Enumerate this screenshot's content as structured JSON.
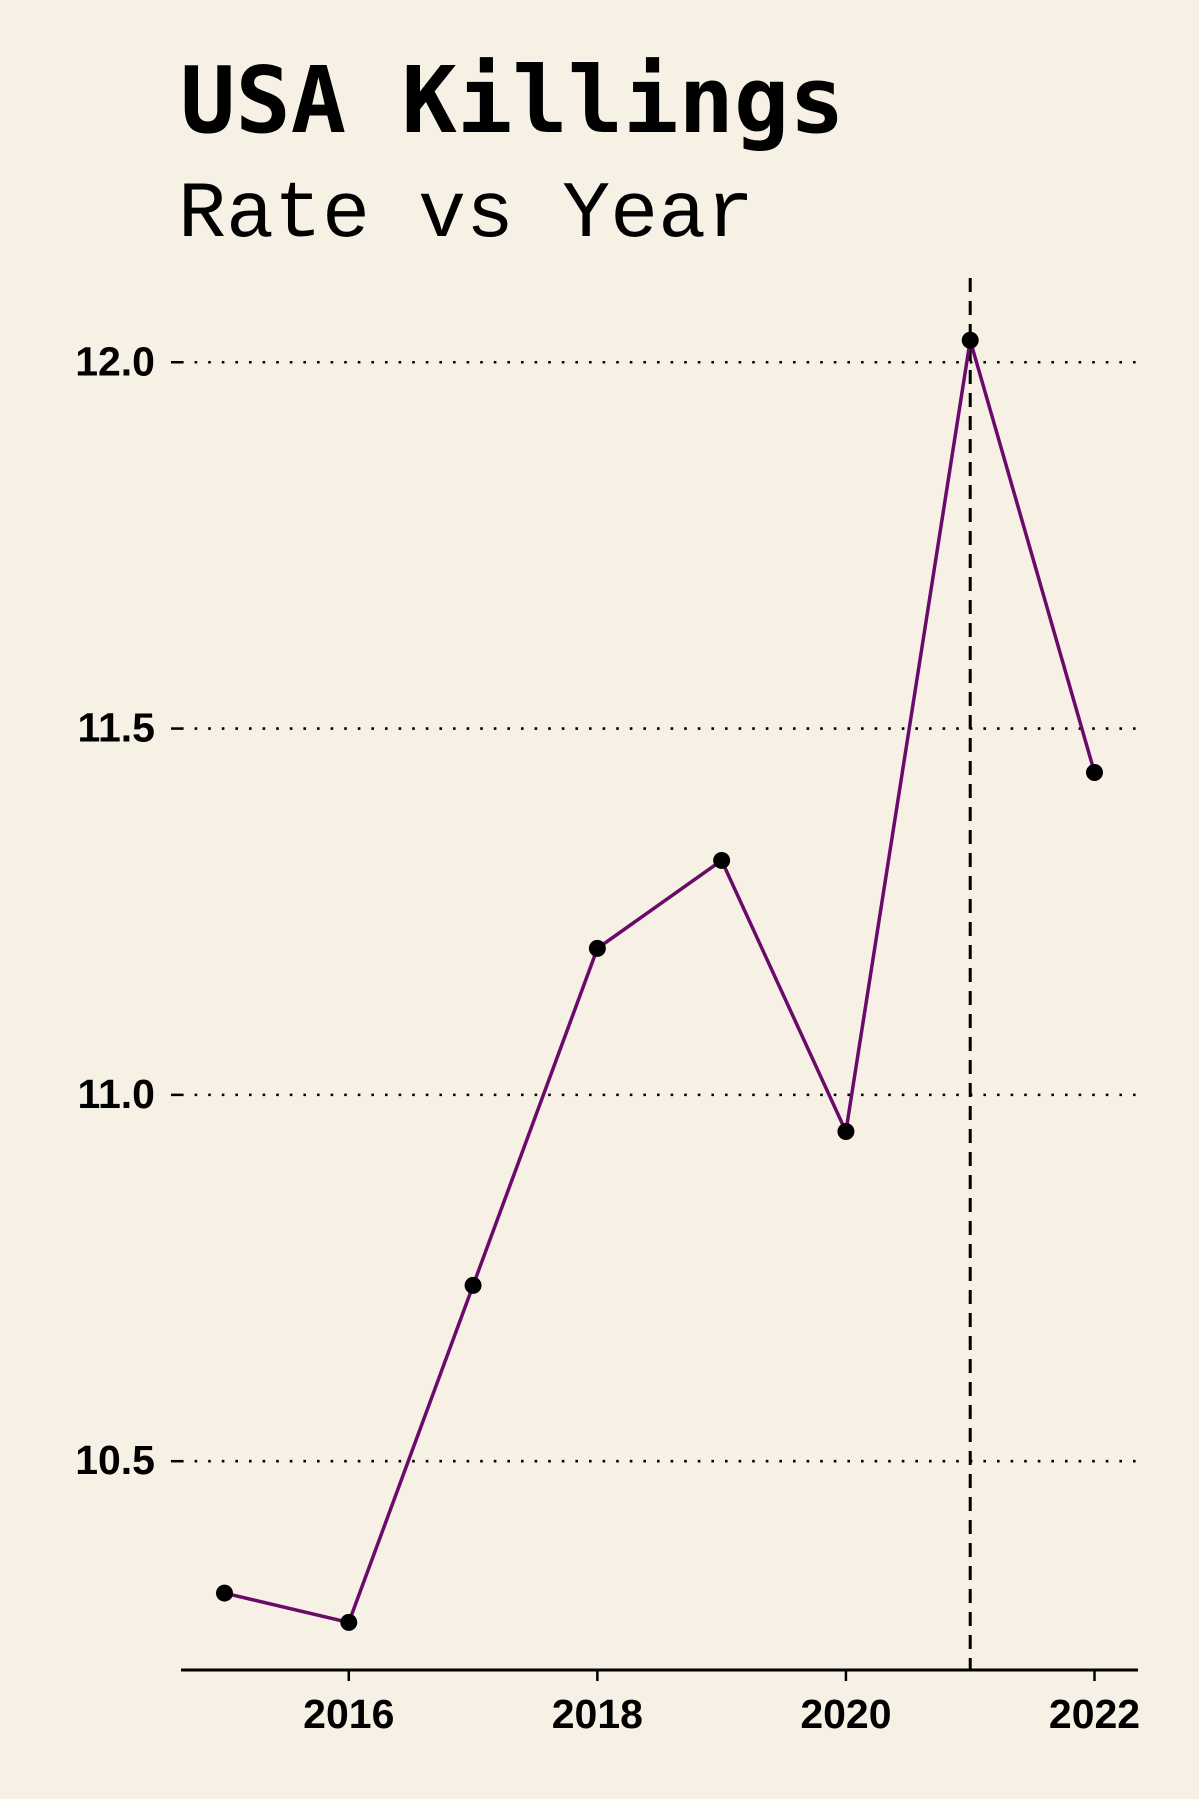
{
  "title": "USA Killings",
  "subtitle": "Rate vs Year",
  "chart_data": {
    "type": "line",
    "title": "USA Killings",
    "subtitle": "Rate vs Year",
    "xlabel": "",
    "ylabel": "",
    "x": [
      2015,
      2016,
      2017,
      2018,
      2019,
      2020,
      2021,
      2022
    ],
    "series": [
      {
        "values": [
          10.32,
          10.28,
          10.74,
          11.2,
          11.32,
          10.95,
          12.03,
          11.44
        ],
        "color": "#6a0a6a",
        "marker_color": "#000000"
      }
    ],
    "xticks": [
      2016,
      2018,
      2020,
      2022
    ],
    "xtick_labels": [
      "2016",
      "2018",
      "2020",
      "2022"
    ],
    "yticks": [
      10.5,
      11.0,
      11.5,
      12.0
    ],
    "ytick_labels": [
      "10.5",
      "11.0",
      "11.5",
      "12.0"
    ],
    "xlim": [
      2014.65,
      2022.35
    ],
    "ylim": [
      10.215,
      12.115
    ],
    "grid": "horizontal, dotted",
    "reference_line": {
      "orientation": "vertical",
      "x": 2021,
      "style": "dashed"
    },
    "background": "#f7f1e5"
  }
}
